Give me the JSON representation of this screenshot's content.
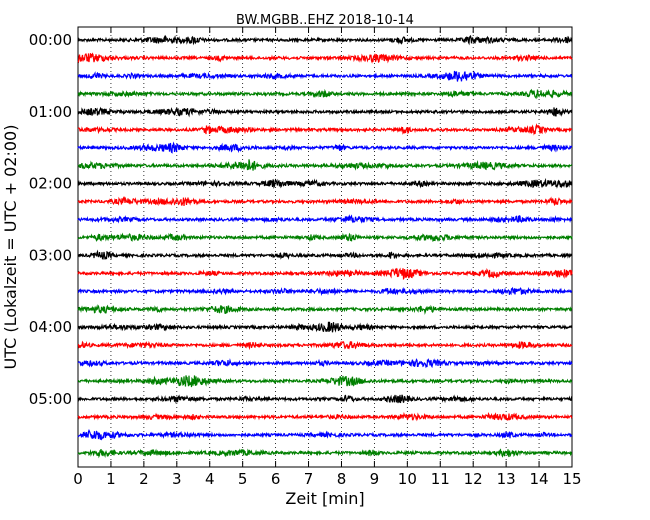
{
  "chart_data": {
    "type": "line",
    "title": "BW.MGBB..EHZ 2018-10-14",
    "xlabel": "Zeit  [min]",
    "ylabel": "UTC (Lokalzeit = UTC + 02:00)",
    "xlim": [
      0,
      15
    ],
    "x_ticks": [
      "0",
      "1",
      "2",
      "3",
      "4",
      "5",
      "6",
      "7",
      "8",
      "9",
      "10",
      "11",
      "12",
      "13",
      "14",
      "15"
    ],
    "y_ticks": [
      "00:00",
      "01:00",
      "02:00",
      "03:00",
      "04:00",
      "05:00"
    ],
    "grid": "vertical dotted",
    "trace_count": 24,
    "trace_interval": "15 min",
    "colors": [
      "#000000",
      "#ff0000",
      "#0000ff",
      "#008000"
    ]
  }
}
